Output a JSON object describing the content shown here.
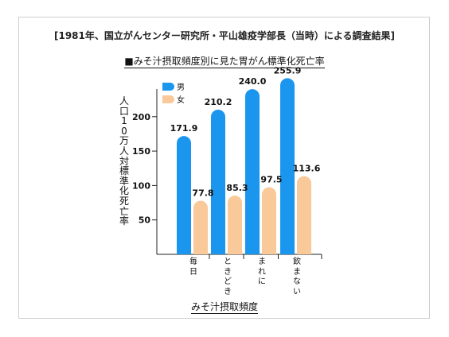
{
  "source_text": "[1981年、国立がんセンター研究所・平山雄疫学部長（当時）による調査結果]",
  "colors": {
    "male": "#1a96ee",
    "female": "#f9c999",
    "axis": "#222222",
    "frame": "#cfcfcf"
  },
  "chart_data": {
    "type": "bar",
    "title": "■みそ汁摂取頻度別に見た胃がん標準化死亡率",
    "xlabel": "みそ汁摂取頻度",
    "ylabel": "人口10万人対標準化死亡率",
    "categories": [
      "毎日",
      "ときどき",
      "まれに",
      "飲まない"
    ],
    "series": [
      {
        "name": "男",
        "values": [
          171.9,
          210.2,
          240.0,
          255.9
        ],
        "labels": [
          "171.9",
          "210.2",
          "240.0",
          "255.9"
        ]
      },
      {
        "name": "女",
        "values": [
          77.8,
          85.3,
          97.5,
          113.6
        ],
        "labels": [
          "77.8",
          "85.3",
          "97.5",
          "113.6"
        ]
      }
    ],
    "yticks": [
      50,
      100,
      150,
      200
    ],
    "ylim": [
      0,
      250
    ],
    "legend_position": "top-left",
    "grid": false
  }
}
